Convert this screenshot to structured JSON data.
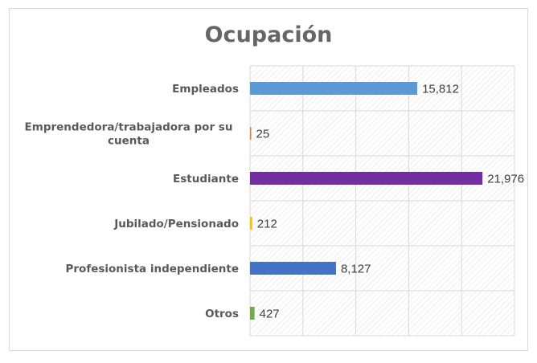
{
  "chart_data": {
    "type": "bar",
    "orientation": "horizontal",
    "title": "Ocupación",
    "categories": [
      "Empleados",
      "Emprendedora/trabajadora por su cuenta",
      "Estudiante",
      "Jubilado/Pensionado",
      "Profesionista independiente",
      "Otros"
    ],
    "category_lines": [
      [
        "Empleados"
      ],
      [
        "Emprendedora/trabajadora por su",
        "cuenta"
      ],
      [
        "Estudiante"
      ],
      [
        "Jubilado/Pensionado"
      ],
      [
        "Profesionista independiente"
      ],
      [
        "Otros"
      ]
    ],
    "values": [
      15812,
      25,
      21976,
      212,
      8127,
      427
    ],
    "value_labels": [
      "15,812",
      "25",
      "21,976",
      "212",
      "8,127",
      "427"
    ],
    "colors": [
      "#5b9bd5",
      "#ed7d31",
      "#7030a0",
      "#ffc000",
      "#4472c4",
      "#70ad47"
    ],
    "xlim": [
      0,
      25000
    ],
    "gridlines": true,
    "plot_background": "hatched",
    "legend": "none"
  }
}
